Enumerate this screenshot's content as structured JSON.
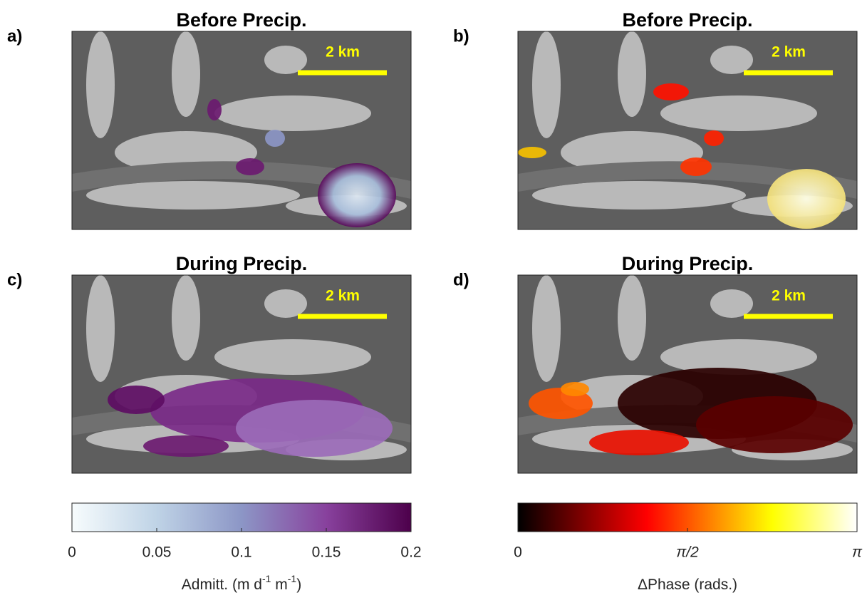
{
  "panels": [
    {
      "label": "a)",
      "title": "Before Precip.",
      "scale_bar": "2 km"
    },
    {
      "label": "b)",
      "title": "Before Precip.",
      "scale_bar": "2 km"
    },
    {
      "label": "c)",
      "title": "During Precip.",
      "scale_bar": "2 km"
    },
    {
      "label": "d)",
      "title": "During Precip.",
      "scale_bar": "2 km"
    }
  ],
  "colorbars": [
    {
      "lim": [
        0,
        0.2
      ],
      "ticks": [
        0,
        0.05,
        0.1,
        0.15,
        0.2
      ],
      "label_parts": [
        "Admitt. (m d",
        "-1",
        " m",
        "-1",
        ")"
      ]
    },
    {
      "lim": [
        0,
        3.14159
      ],
      "ticks": [
        0,
        {
          "value": 1.5708,
          "label": "π/2"
        },
        {
          "value": 3.14159,
          "label": "π"
        }
      ],
      "label_parts": [
        "ΔPhase (rads.)"
      ]
    }
  ]
}
